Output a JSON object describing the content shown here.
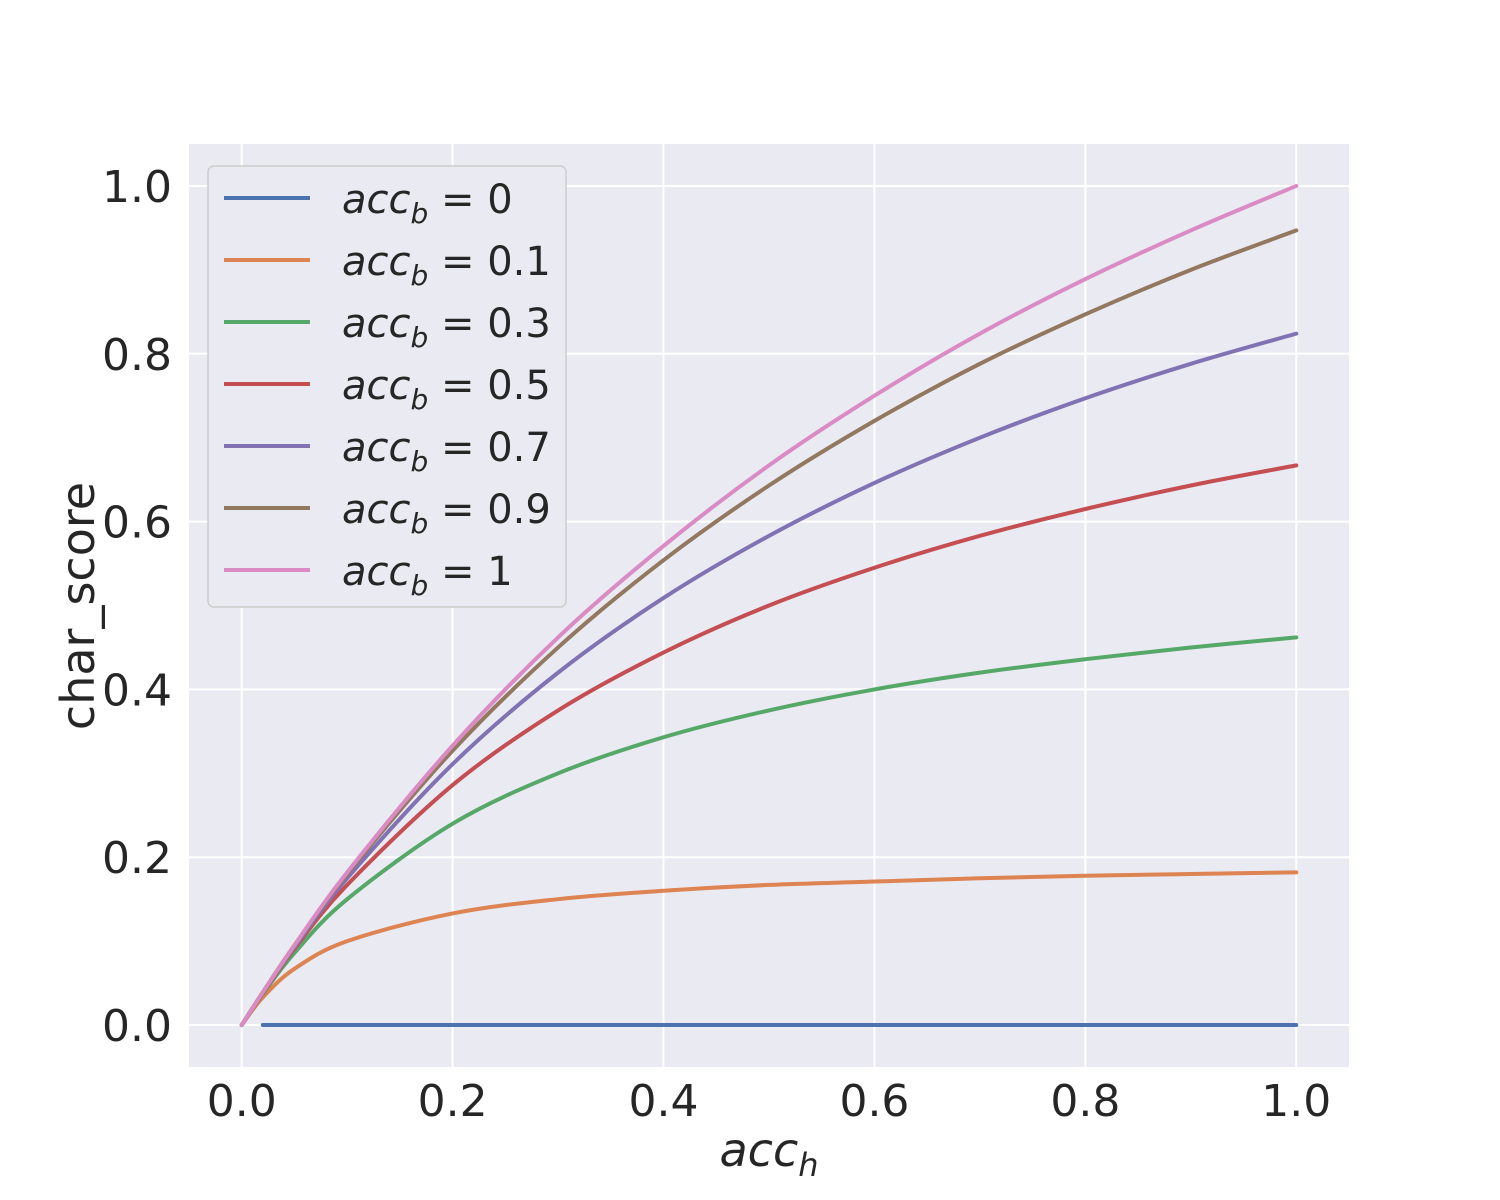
{
  "chart_data": {
    "type": "line",
    "xlabel": "acc",
    "xlabel_sub": "h",
    "ylabel": "char_score",
    "xlim": [
      -0.05,
      1.05
    ],
    "ylim": [
      -0.05,
      1.05
    ],
    "xticks": [
      "0.0",
      "0.2",
      "0.4",
      "0.6",
      "0.8",
      "1.0"
    ],
    "yticks": [
      "0.0",
      "0.2",
      "0.4",
      "0.6",
      "0.8",
      "1.0"
    ],
    "grid": true,
    "legend_position": "top-left",
    "x": [
      0.0,
      0.02,
      0.05,
      0.1,
      0.2,
      0.3,
      0.4,
      0.5,
      0.6,
      0.7,
      0.8,
      0.9,
      1.0
    ],
    "series": [
      {
        "name": "acc_b = 0",
        "legend_value": "0",
        "color": "#4c72b0",
        "values": [
          0.0,
          0.0,
          0.0,
          0.0,
          0.0,
          0.0,
          0.0,
          0.0,
          0.0,
          0.0,
          0.0,
          0.0,
          0.0
        ],
        "x_start": 0.02
      },
      {
        "name": "acc_b = 0.1",
        "legend_value": "0.1",
        "color": "#dd8452",
        "values": [
          0.0,
          0.033,
          0.067,
          0.1,
          0.133,
          0.15,
          0.16,
          0.167,
          0.171,
          0.175,
          0.178,
          0.18,
          0.182
        ]
      },
      {
        "name": "acc_b = 0.3",
        "legend_value": "0.3",
        "color": "#55a868",
        "values": [
          0.0,
          0.037,
          0.086,
          0.15,
          0.24,
          0.3,
          0.343,
          0.375,
          0.4,
          0.42,
          0.436,
          0.45,
          0.462
        ]
      },
      {
        "name": "acc_b = 0.5",
        "legend_value": "0.5",
        "color": "#c44e52",
        "values": [
          0.0,
          0.038,
          0.091,
          0.167,
          0.286,
          0.375,
          0.444,
          0.5,
          0.545,
          0.583,
          0.615,
          0.643,
          0.667
        ]
      },
      {
        "name": "acc_b = 0.7",
        "legend_value": "0.7",
        "color": "#8172b3",
        "values": [
          0.0,
          0.039,
          0.093,
          0.175,
          0.311,
          0.42,
          0.509,
          0.583,
          0.646,
          0.7,
          0.747,
          0.788,
          0.824
        ]
      },
      {
        "name": "acc_b = 0.9",
        "legend_value": "0.9",
        "color": "#937860",
        "values": [
          0.0,
          0.039,
          0.095,
          0.18,
          0.327,
          0.45,
          0.554,
          0.643,
          0.72,
          0.788,
          0.847,
          0.9,
          0.947
        ]
      },
      {
        "name": "acc_b = 1",
        "legend_value": "1",
        "color": "#da8bc3",
        "values": [
          0.0,
          0.039,
          0.095,
          0.182,
          0.333,
          0.462,
          0.571,
          0.667,
          0.75,
          0.824,
          0.889,
          0.947,
          1.0
        ]
      }
    ]
  },
  "legend_var": "acc",
  "legend_sub": "b"
}
